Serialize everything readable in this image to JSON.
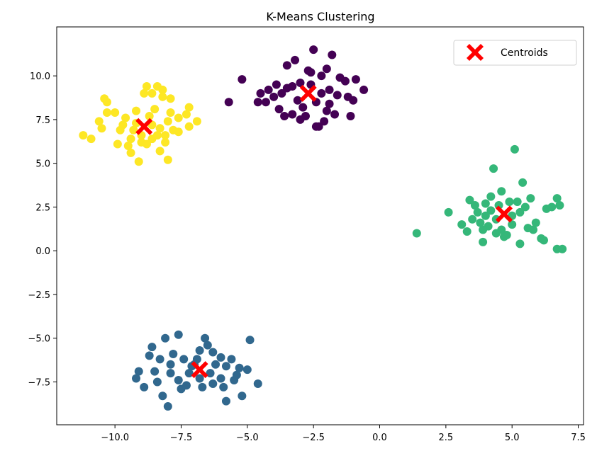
{
  "chart_data": {
    "type": "scatter",
    "title": "K-Means Clustering",
    "xlabel": "",
    "ylabel": "",
    "xlim": [
      -12.2,
      7.7
    ],
    "ylim": [
      -9.95,
      12.8
    ],
    "xticks": [
      -10.0,
      -7.5,
      -5.0,
      -2.5,
      0.0,
      2.5,
      5.0,
      7.5
    ],
    "xtick_labels": [
      "−10.0",
      "−7.5",
      "−5.0",
      "−2.5",
      "0.0",
      "2.5",
      "5.0",
      "7.5"
    ],
    "yticks": [
      -7.5,
      -5.0,
      -2.5,
      0.0,
      2.5,
      5.0,
      7.5,
      10.0
    ],
    "ytick_labels": [
      "−7.5",
      "−5.0",
      "−2.5",
      "0.0",
      "2.5",
      "5.0",
      "7.5",
      "10.0"
    ],
    "grid": false,
    "legend": {
      "placement": "top-right",
      "entries": [
        "Centroids"
      ]
    },
    "clusters": [
      {
        "color": "#440154",
        "points": [
          [
            -5.2,
            9.8
          ],
          [
            -5.7,
            8.5
          ],
          [
            -4.5,
            9.0
          ],
          [
            -4.2,
            9.2
          ],
          [
            -3.9,
            9.5
          ],
          [
            -3.5,
            10.6
          ],
          [
            -3.2,
            10.9
          ],
          [
            -3.0,
            9.6
          ],
          [
            -2.5,
            11.5
          ],
          [
            -2.6,
            10.2
          ],
          [
            -2.2,
            10.0
          ],
          [
            -2.0,
            10.4
          ],
          [
            -1.8,
            11.2
          ],
          [
            -1.5,
            9.9
          ],
          [
            -1.3,
            9.7
          ],
          [
            -0.9,
            9.8
          ],
          [
            -0.6,
            9.2
          ],
          [
            -1.0,
            8.6
          ],
          [
            -1.1,
            7.7
          ],
          [
            -1.7,
            7.8
          ],
          [
            -1.9,
            8.4
          ],
          [
            -2.1,
            7.4
          ],
          [
            -2.4,
            7.1
          ],
          [
            -2.8,
            7.7
          ],
          [
            -3.3,
            7.8
          ],
          [
            -3.6,
            7.7
          ],
          [
            -3.8,
            8.1
          ],
          [
            -4.3,
            8.5
          ],
          [
            -4.0,
            8.8
          ],
          [
            -3.5,
            9.3
          ],
          [
            -3.1,
            8.6
          ],
          [
            -2.9,
            8.2
          ],
          [
            -2.6,
            9.5
          ],
          [
            -2.2,
            9.0
          ],
          [
            -1.9,
            9.2
          ],
          [
            -1.6,
            8.9
          ],
          [
            -3.3,
            9.4
          ],
          [
            -2.4,
            8.5
          ],
          [
            -2.0,
            8.0
          ],
          [
            -3.7,
            9.0
          ],
          [
            -1.2,
            8.8
          ],
          [
            -2.7,
            10.3
          ],
          [
            -4.6,
            8.5
          ],
          [
            -3.0,
            7.5
          ],
          [
            -2.3,
            7.1
          ]
        ]
      },
      {
        "color": "#31688e",
        "points": [
          [
            -9.2,
            -7.3
          ],
          [
            -9.1,
            -6.9
          ],
          [
            -8.6,
            -5.5
          ],
          [
            -8.5,
            -6.9
          ],
          [
            -8.4,
            -7.5
          ],
          [
            -8.2,
            -8.3
          ],
          [
            -8.0,
            -8.9
          ],
          [
            -8.1,
            -5.0
          ],
          [
            -8.3,
            -6.2
          ],
          [
            -7.9,
            -7.0
          ],
          [
            -7.6,
            -4.8
          ],
          [
            -7.4,
            -6.2
          ],
          [
            -7.3,
            -7.7
          ],
          [
            -7.0,
            -6.5
          ],
          [
            -6.9,
            -6.2
          ],
          [
            -6.8,
            -5.7
          ],
          [
            -6.6,
            -5.0
          ],
          [
            -6.5,
            -5.4
          ],
          [
            -6.3,
            -5.8
          ],
          [
            -6.2,
            -6.5
          ],
          [
            -6.0,
            -7.3
          ],
          [
            -5.8,
            -8.6
          ],
          [
            -5.6,
            -6.2
          ],
          [
            -5.4,
            -7.1
          ],
          [
            -5.2,
            -8.3
          ],
          [
            -4.9,
            -5.1
          ],
          [
            -4.6,
            -7.6
          ],
          [
            -5.0,
            -6.8
          ],
          [
            -5.3,
            -6.7
          ],
          [
            -5.8,
            -6.6
          ],
          [
            -6.3,
            -7.6
          ],
          [
            -6.7,
            -7.8
          ],
          [
            -7.2,
            -7.0
          ],
          [
            -7.6,
            -7.4
          ],
          [
            -7.9,
            -6.5
          ],
          [
            -8.7,
            -6.0
          ],
          [
            -7.1,
            -6.6
          ],
          [
            -6.4,
            -7.0
          ],
          [
            -5.9,
            -7.8
          ],
          [
            -7.5,
            -7.9
          ],
          [
            -6.0,
            -6.1
          ],
          [
            -6.8,
            -7.3
          ],
          [
            -8.9,
            -7.8
          ],
          [
            -7.8,
            -5.9
          ],
          [
            -5.5,
            -7.4
          ]
        ]
      },
      {
        "color": "#35b779",
        "points": [
          [
            1.4,
            1.0
          ],
          [
            2.6,
            2.2
          ],
          [
            3.1,
            1.5
          ],
          [
            3.3,
            1.1
          ],
          [
            3.4,
            2.9
          ],
          [
            3.6,
            2.6
          ],
          [
            3.8,
            1.6
          ],
          [
            3.9,
            0.5
          ],
          [
            4.0,
            2.0
          ],
          [
            4.2,
            3.1
          ],
          [
            4.3,
            4.7
          ],
          [
            4.4,
            1.0
          ],
          [
            4.5,
            2.6
          ],
          [
            4.6,
            3.4
          ],
          [
            4.8,
            0.9
          ],
          [
            5.0,
            1.5
          ],
          [
            5.1,
            5.8
          ],
          [
            5.2,
            2.8
          ],
          [
            5.3,
            0.4
          ],
          [
            5.4,
            3.9
          ],
          [
            5.5,
            2.5
          ],
          [
            5.6,
            1.3
          ],
          [
            5.7,
            3.0
          ],
          [
            5.8,
            1.2
          ],
          [
            6.1,
            0.7
          ],
          [
            6.2,
            0.6
          ],
          [
            6.3,
            2.4
          ],
          [
            6.5,
            2.5
          ],
          [
            6.7,
            3.0
          ],
          [
            6.8,
            2.6
          ],
          [
            6.7,
            0.1
          ],
          [
            6.9,
            0.1
          ],
          [
            3.7,
            2.2
          ],
          [
            4.1,
            1.4
          ],
          [
            4.2,
            2.3
          ],
          [
            4.9,
            2.8
          ],
          [
            5.0,
            2.0
          ],
          [
            4.6,
            1.2
          ],
          [
            3.5,
            1.8
          ],
          [
            4.0,
            2.7
          ],
          [
            5.3,
            2.2
          ],
          [
            4.4,
            1.8
          ],
          [
            3.9,
            1.2
          ],
          [
            5.9,
            1.6
          ],
          [
            4.7,
            0.8
          ]
        ]
      },
      {
        "color": "#fde725",
        "points": [
          [
            -11.2,
            6.6
          ],
          [
            -10.9,
            6.4
          ],
          [
            -10.5,
            7.0
          ],
          [
            -10.3,
            7.9
          ],
          [
            -10.4,
            8.7
          ],
          [
            -10.3,
            8.5
          ],
          [
            -10.0,
            7.9
          ],
          [
            -9.7,
            7.2
          ],
          [
            -9.5,
            6.0
          ],
          [
            -9.4,
            5.6
          ],
          [
            -9.2,
            8.0
          ],
          [
            -9.0,
            6.6
          ],
          [
            -8.9,
            9.0
          ],
          [
            -8.8,
            9.4
          ],
          [
            -8.6,
            9.0
          ],
          [
            -8.5,
            8.1
          ],
          [
            -8.4,
            9.4
          ],
          [
            -8.2,
            9.2
          ],
          [
            -8.2,
            8.8
          ],
          [
            -8.0,
            7.4
          ],
          [
            -8.3,
            5.7
          ],
          [
            -8.0,
            5.2
          ],
          [
            -7.8,
            6.9
          ],
          [
            -7.6,
            7.6
          ],
          [
            -7.3,
            7.8
          ],
          [
            -7.2,
            8.2
          ],
          [
            -7.2,
            7.1
          ],
          [
            -6.9,
            7.4
          ],
          [
            -9.1,
            5.1
          ],
          [
            -9.6,
            7.6
          ],
          [
            -9.2,
            7.3
          ],
          [
            -8.6,
            6.4
          ],
          [
            -8.3,
            7.0
          ],
          [
            -8.7,
            7.7
          ],
          [
            -9.3,
            6.9
          ],
          [
            -8.1,
            6.2
          ],
          [
            -7.9,
            8.7
          ],
          [
            -9.0,
            6.2
          ],
          [
            -8.4,
            6.6
          ],
          [
            -9.8,
            6.9
          ],
          [
            -7.6,
            6.8
          ],
          [
            -8.6,
            7.2
          ],
          [
            -9.4,
            6.4
          ],
          [
            -8.8,
            6.1
          ],
          [
            -8.1,
            6.6
          ],
          [
            -10.6,
            7.4
          ],
          [
            -9.9,
            6.1
          ],
          [
            -7.9,
            7.9
          ]
        ]
      }
    ],
    "centroids": {
      "name": "Centroids",
      "color": "#ff0000",
      "points": [
        [
          -2.7,
          9.0
        ],
        [
          -6.8,
          -6.8
        ],
        [
          4.7,
          2.1
        ],
        [
          -8.9,
          7.1
        ]
      ]
    }
  }
}
